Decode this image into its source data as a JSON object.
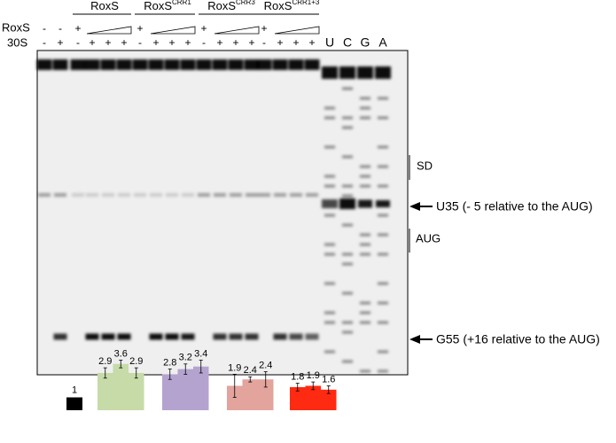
{
  "header": {
    "row_labels": [
      "RoxS",
      "30S"
    ],
    "groups": [
      {
        "name": "RoxS",
        "sup": null
      },
      {
        "name": "RoxS",
        "sup": "CRR1"
      },
      {
        "name": "RoxS",
        "sup": "CRR3"
      },
      {
        "name": "RoxS",
        "sup": "CRR1+3"
      }
    ],
    "roxs_signs": [
      "-",
      "-",
      "+",
      "+",
      "+",
      "+"
    ],
    "lanes_30s": [
      [
        "-",
        "+"
      ],
      [
        "-",
        "+",
        "+",
        "+"
      ],
      [
        "-",
        "+",
        "+",
        "+"
      ],
      [
        "-",
        "+",
        "+",
        "+"
      ],
      [
        "-",
        "+",
        "+",
        "+"
      ]
    ],
    "ladder": [
      "U",
      "C",
      "G",
      "A"
    ]
  },
  "annotations": {
    "sd": "SD",
    "u35": "U35 (- 5 relative to the AUG)",
    "aug": "AUG",
    "g55": "G55 (+16 relative to the AUG)"
  },
  "quantification": {
    "groups": [
      {
        "color": "#000000",
        "values": [
          1
        ],
        "errors": [
          0
        ]
      },
      {
        "color": "#c6dba8",
        "values": [
          2.9,
          3.6,
          2.9
        ],
        "errors": [
          0.4,
          0.3,
          0.4
        ]
      },
      {
        "color": "#b5a3cf",
        "values": [
          2.8,
          3.2,
          3.4
        ],
        "errors": [
          0.4,
          0.4,
          0.5
        ]
      },
      {
        "color": "#e2a49d",
        "values": [
          1.9,
          2.4,
          2.4
        ],
        "errors": [
          0.9,
          0.2,
          0.6
        ]
      },
      {
        "color": "#ff2a12",
        "values": [
          1.8,
          1.9,
          1.6
        ],
        "errors": [
          0.3,
          0.3,
          0.3
        ]
      }
    ]
  }
}
